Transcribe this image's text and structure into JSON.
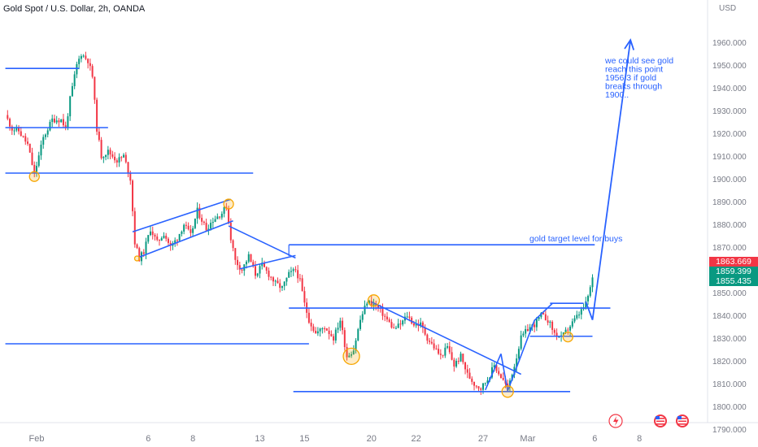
{
  "header": {
    "title": "Gold Spot / U.S. Dollar, 2h, OANDA",
    "currency": "USD"
  },
  "chart_data": {
    "type": "candlestick",
    "title": "Gold Spot / U.S. Dollar, 2h, OANDA",
    "ylabel": "USD",
    "ylim": [
      1790,
      1960
    ],
    "yticks": [
      1960,
      1950,
      1940,
      1930,
      1920,
      1910,
      1900,
      1890,
      1880,
      1870,
      1860,
      1850,
      1840,
      1830,
      1820,
      1810,
      1800,
      1790
    ],
    "ytick_labels": [
      "1960.000",
      "1950.000",
      "1940.000",
      "1930.000",
      "1920.000",
      "1910.000",
      "1900.000",
      "1890.000",
      "1880.000",
      "1870.000",
      "1860.000",
      "1850.000",
      "1840.000",
      "1830.000",
      "1820.000",
      "1810.000",
      "1800.000",
      "1790.000"
    ],
    "xticks": [
      {
        "label": "Feb",
        "x": 0.0
      },
      {
        "label": "6",
        "x": 5.0
      },
      {
        "label": "8",
        "x": 7.0
      },
      {
        "label": "13",
        "x": 10.0
      },
      {
        "label": "15",
        "x": 12.0
      },
      {
        "label": "20",
        "x": 15.0
      },
      {
        "label": "22",
        "x": 17.0
      },
      {
        "label": "27",
        "x": 20.0
      },
      {
        "label": "Mar",
        "x": 22.0
      },
      {
        "label": "6",
        "x": 25.0
      },
      {
        "label": "8",
        "x": 27.0
      }
    ],
    "price_path": [
      [
        -1.4,
        1928
      ],
      [
        -1.1,
        1922
      ],
      [
        -0.8,
        1921
      ],
      [
        -0.4,
        1915
      ],
      [
        -0.1,
        1902
      ],
      [
        0.3,
        1918
      ],
      [
        0.7,
        1926
      ],
      [
        1.1,
        1926
      ],
      [
        1.3,
        1922
      ],
      [
        1.5,
        1935
      ],
      [
        1.8,
        1950
      ],
      [
        2.0,
        1955
      ],
      [
        2.3,
        1952
      ],
      [
        2.5,
        1945
      ],
      [
        2.7,
        1922
      ],
      [
        2.9,
        1910
      ],
      [
        3.2,
        1912
      ],
      [
        3.6,
        1908
      ],
      [
        3.9,
        1910
      ],
      [
        4.2,
        1900
      ],
      [
        4.4,
        1872
      ],
      [
        4.6,
        1865
      ],
      [
        4.8,
        1868
      ],
      [
        5.1,
        1878
      ],
      [
        5.4,
        1872
      ],
      [
        5.7,
        1876
      ],
      [
        6.0,
        1870
      ],
      [
        6.3,
        1874
      ],
      [
        6.6,
        1880
      ],
      [
        6.9,
        1875
      ],
      [
        7.2,
        1886
      ],
      [
        7.6,
        1878
      ],
      [
        7.9,
        1882
      ],
      [
        8.3,
        1885
      ],
      [
        8.5,
        1888
      ],
      [
        8.7,
        1874
      ],
      [
        8.9,
        1864
      ],
      [
        9.2,
        1860
      ],
      [
        9.5,
        1866
      ],
      [
        9.8,
        1858
      ],
      [
        10.1,
        1862
      ],
      [
        10.4,
        1858
      ],
      [
        10.7,
        1854
      ],
      [
        11.0,
        1852
      ],
      [
        11.3,
        1858
      ],
      [
        11.6,
        1860
      ],
      [
        11.8,
        1855
      ],
      [
        12.0,
        1845
      ],
      [
        12.2,
        1838
      ],
      [
        12.5,
        1832
      ],
      [
        12.9,
        1835
      ],
      [
        13.3,
        1830
      ],
      [
        13.6,
        1838
      ],
      [
        13.9,
        1822
      ],
      [
        14.2,
        1825
      ],
      [
        14.5,
        1838
      ],
      [
        14.8,
        1846
      ],
      [
        15.1,
        1845
      ],
      [
        15.4,
        1842
      ],
      [
        15.7,
        1838
      ],
      [
        16.0,
        1834
      ],
      [
        16.3,
        1836
      ],
      [
        16.6,
        1840
      ],
      [
        16.9,
        1836
      ],
      [
        17.2,
        1836
      ],
      [
        17.5,
        1830
      ],
      [
        17.8,
        1826
      ],
      [
        18.1,
        1822
      ],
      [
        18.4,
        1826
      ],
      [
        18.7,
        1818
      ],
      [
        19.0,
        1822
      ],
      [
        19.3,
        1814
      ],
      [
        19.6,
        1810
      ],
      [
        19.9,
        1808
      ],
      [
        20.2,
        1812
      ],
      [
        20.5,
        1818
      ],
      [
        20.8,
        1813
      ],
      [
        21.1,
        1808
      ],
      [
        21.4,
        1818
      ],
      [
        21.7,
        1830
      ],
      [
        22.0,
        1834
      ],
      [
        22.3,
        1836
      ],
      [
        22.6,
        1840
      ],
      [
        22.9,
        1838
      ],
      [
        23.2,
        1832
      ],
      [
        23.5,
        1830
      ],
      [
        23.8,
        1834
      ],
      [
        24.1,
        1838
      ],
      [
        24.4,
        1842
      ],
      [
        24.6,
        1845
      ],
      [
        24.8,
        1852
      ],
      [
        24.9,
        1856
      ]
    ],
    "last_price": 1859.399,
    "price_labels": [
      {
        "value": "1863.669",
        "color": "#f23645"
      },
      {
        "value": "1859.399",
        "color": "#089981"
      },
      {
        "value": "1855.435",
        "color": "#089981"
      }
    ],
    "horizontal_levels": [
      {
        "y": 1948.5,
        "x0": -1.4,
        "x1": 1.9
      },
      {
        "y": 1922.5,
        "x0": -1.4,
        "x1": 3.2
      },
      {
        "y": 1902.5,
        "x0": -1.4,
        "x1": 9.7
      },
      {
        "y": 1827.5,
        "x0": -1.4,
        "x1": 12.2
      },
      {
        "y": 1843.2,
        "x0": 11.3,
        "x1": 25.7
      },
      {
        "y": 1806.5,
        "x0": 11.5,
        "x1": 23.9
      },
      {
        "y": 1871.0,
        "x0": 11.3,
        "x1": 25.0
      },
      {
        "y": 1830.8,
        "x0": 22.1,
        "x1": 24.9
      },
      {
        "y": 1845.3,
        "x0": 23.0,
        "x1": 24.5
      }
    ],
    "trendlines": [
      {
        "from": [
          4.6,
          1865.6
        ],
        "to": [
          8.8,
          1881.5
        ]
      },
      {
        "from": [
          4.3,
          1876.7
        ],
        "to": [
          8.7,
          1891.0
        ]
      },
      {
        "from": [
          8.6,
          1879.3
        ],
        "to": [
          11.6,
          1865.2
        ]
      },
      {
        "from": [
          9.1,
          1860.4
        ],
        "to": [
          11.6,
          1866.3
        ]
      },
      {
        "from": [
          15.0,
          1845.9
        ],
        "to": [
          21.7,
          1814.1
        ]
      },
      {
        "from": [
          20.1,
          1807.2
        ],
        "to": [
          20.8,
          1823.1
        ]
      },
      {
        "from": [
          20.8,
          1823.1
        ],
        "to": [
          21.1,
          1806.8
        ]
      },
      {
        "from": [
          21.1,
          1806.8
        ],
        "to": [
          22.3,
          1837.8
        ]
      },
      {
        "from": [
          22.3,
          1837.8
        ],
        "to": [
          23.1,
          1845.2
        ]
      }
    ],
    "projection_arrow": {
      "points": [
        [
          24.6,
          1846
        ],
        [
          24.9,
          1838
        ],
        [
          26.6,
          1961
        ]
      ]
    },
    "circled_points": [
      {
        "x": -0.1,
        "y": 1901,
        "r": 6
      },
      {
        "x": 4.5,
        "y": 1865,
        "r": 3
      },
      {
        "x": 8.6,
        "y": 1888.9,
        "r": 6
      },
      {
        "x": 14.1,
        "y": 1822,
        "r": 10
      },
      {
        "x": 15.1,
        "y": 1846.5,
        "r": 7
      },
      {
        "x": 21.1,
        "y": 1806.5,
        "r": 7
      },
      {
        "x": 23.8,
        "y": 1830.5,
        "r": 6
      }
    ],
    "annotations": [
      {
        "lines": [
          "gold target level for buys"
        ]
      },
      {
        "lines": [
          "we could see gold",
          "reach this point",
          "1956.3 if gold",
          "breaks through",
          "1900.."
        ]
      }
    ],
    "grid": false,
    "colors": {
      "up": "#089981",
      "down": "#f23645",
      "drawing": "#2962ff",
      "marker": "#f7a600"
    }
  }
}
